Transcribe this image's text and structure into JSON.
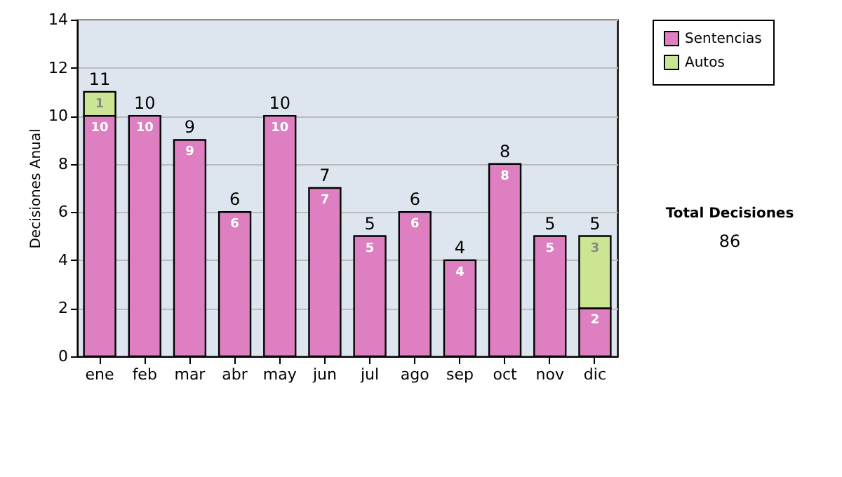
{
  "chart_data": {
    "type": "bar",
    "stacked": true,
    "ylabel": "Decisiones Anual",
    "categories": [
      "ene",
      "feb",
      "mar",
      "abr",
      "may",
      "jun",
      "jul",
      "ago",
      "sep",
      "oct",
      "nov",
      "dic"
    ],
    "series": [
      {
        "name": "Sentencias",
        "color": "#dd7fc0",
        "values": [
          10,
          10,
          9,
          6,
          10,
          7,
          5,
          6,
          4,
          8,
          5,
          2
        ],
        "value_labels": [
          "10",
          "10",
          "9",
          "6",
          "10",
          "7",
          "5",
          "6",
          "4",
          "8",
          "5",
          "2"
        ]
      },
      {
        "name": "Autos",
        "color": "#cce593",
        "values": [
          1,
          0,
          0,
          0,
          0,
          0,
          0,
          0,
          0,
          0,
          0,
          3
        ],
        "value_labels": [
          "1",
          null,
          null,
          null,
          null,
          null,
          null,
          null,
          null,
          null,
          null,
          "3"
        ]
      }
    ],
    "totals": [
      "11",
      "10",
      "9",
      "6",
      "10",
      "7",
      "5",
      "6",
      "4",
      "8",
      "5",
      "5"
    ],
    "ylim": [
      0,
      14
    ],
    "yticks": [
      0,
      2,
      4,
      6,
      8,
      10,
      12,
      14
    ],
    "grid": "y",
    "legend": "right",
    "annotations": [
      "Total Decisiones",
      "86"
    ]
  }
}
